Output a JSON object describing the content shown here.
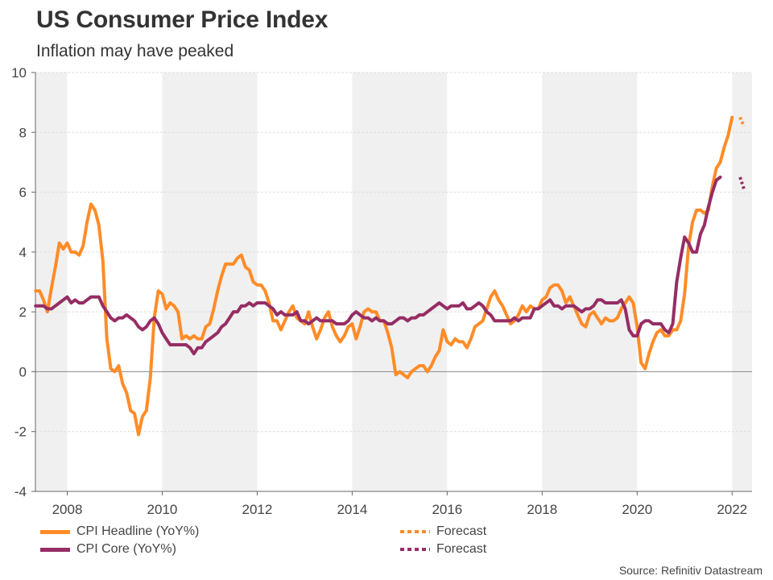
{
  "header": {
    "title": "US Consumer Price Index",
    "subtitle": "Inflation may have peaked"
  },
  "legend": [
    {
      "label": "CPI Headline (YoY%)",
      "color": "#FF8C28",
      "style": "solid"
    },
    {
      "label": "CPI Core (YoY%)",
      "color": "#962D64",
      "style": "solid"
    },
    {
      "label": "Forecast",
      "color": "#FF8C28",
      "style": "dotted"
    },
    {
      "label": "Forecast",
      "color": "#962D64",
      "style": "dotted"
    }
  ],
  "source": "Source: Refinitiv Datastream",
  "chart_data": {
    "type": "line",
    "title": "US Consumer Price Index",
    "subtitle": "Inflation may have peaked",
    "xlabel": "",
    "ylabel": "",
    "ylim": [
      -4,
      10
    ],
    "xlim": [
      2007.33,
      2022.42
    ],
    "yticks": [
      -4,
      -2,
      0,
      2,
      4,
      6,
      8,
      10
    ],
    "xticks": [
      "2008",
      "2010",
      "2012",
      "2014",
      "2016",
      "2018",
      "2020",
      "2022"
    ],
    "grid": true,
    "shaded_bands_years": [
      [
        2007.33,
        2008
      ],
      [
        2010,
        2012
      ],
      [
        2014,
        2016
      ],
      [
        2018,
        2020
      ],
      [
        2022,
        2022.42
      ]
    ],
    "x_start": "2007-05",
    "frequency": "monthly",
    "series": [
      {
        "name": "CPI Headline (YoY%)",
        "color": "#FF8C28",
        "values": [
          2.7,
          2.7,
          2.4,
          2.0,
          2.8,
          3.5,
          4.3,
          4.1,
          4.3,
          4.0,
          4.0,
          3.9,
          4.2,
          5.0,
          5.6,
          5.4,
          4.9,
          3.7,
          1.1,
          0.1,
          0.0,
          0.2,
          -0.4,
          -0.7,
          -1.3,
          -1.4,
          -2.1,
          -1.5,
          -1.3,
          -0.2,
          1.8,
          2.7,
          2.6,
          2.1,
          2.3,
          2.2,
          2.0,
          1.1,
          1.2,
          1.1,
          1.2,
          1.1,
          1.1,
          1.5,
          1.6,
          2.1,
          2.7,
          3.2,
          3.6,
          3.6,
          3.6,
          3.8,
          3.9,
          3.5,
          3.4,
          3.0,
          2.9,
          2.9,
          2.7,
          2.3,
          1.7,
          1.7,
          1.4,
          1.7,
          2.0,
          2.2,
          1.8,
          1.7,
          1.6,
          2.0,
          1.5,
          1.1,
          1.4,
          1.8,
          2.0,
          1.5,
          1.2,
          1.0,
          1.2,
          1.5,
          1.6,
          1.1,
          1.5,
          2.0,
          2.1,
          2.0,
          2.0,
          1.7,
          1.7,
          1.3,
          0.8,
          -0.1,
          0.0,
          -0.1,
          -0.2,
          0.0,
          0.1,
          0.2,
          0.2,
          0.0,
          0.2,
          0.5,
          0.7,
          1.4,
          1.0,
          0.9,
          1.1,
          1.0,
          1.0,
          0.8,
          1.1,
          1.5,
          1.6,
          1.7,
          2.1,
          2.5,
          2.7,
          2.4,
          2.2,
          1.9,
          1.6,
          1.7,
          1.9,
          2.2,
          2.0,
          2.2,
          2.1,
          2.1,
          2.4,
          2.5,
          2.8,
          2.9,
          2.9,
          2.7,
          2.3,
          2.5,
          2.2,
          1.9,
          1.6,
          1.5,
          1.9,
          2.0,
          1.8,
          1.6,
          1.8,
          1.7,
          1.7,
          1.8,
          2.1,
          2.3,
          2.5,
          2.3,
          1.5,
          0.3,
          0.1,
          0.6,
          1.0,
          1.3,
          1.4,
          1.2,
          1.2,
          1.4,
          1.4,
          1.7,
          2.6,
          4.2,
          5.0,
          5.4,
          5.4,
          5.3,
          5.4,
          6.2,
          6.8,
          7.0,
          7.5,
          7.9,
          8.5
        ],
        "forecast": {
          "x": "2022-04",
          "values_from": "2022-03",
          "values": [
            8.5,
            8.2
          ]
        }
      },
      {
        "name": "CPI Core (YoY%)",
        "color": "#962D64",
        "values": [
          2.2,
          2.2,
          2.2,
          2.1,
          2.1,
          2.2,
          2.3,
          2.4,
          2.5,
          2.3,
          2.4,
          2.3,
          2.3,
          2.4,
          2.5,
          2.5,
          2.5,
          2.2,
          2.0,
          1.8,
          1.7,
          1.8,
          1.8,
          1.9,
          1.8,
          1.7,
          1.5,
          1.4,
          1.5,
          1.7,
          1.8,
          1.6,
          1.3,
          1.1,
          0.9,
          0.9,
          0.9,
          0.9,
          0.9,
          0.8,
          0.6,
          0.8,
          0.8,
          1.0,
          1.1,
          1.2,
          1.3,
          1.5,
          1.6,
          1.8,
          2.0,
          2.0,
          2.2,
          2.2,
          2.3,
          2.2,
          2.3,
          2.3,
          2.3,
          2.2,
          2.1,
          1.9,
          2.0,
          1.9,
          1.9,
          1.9,
          2.0,
          1.7,
          1.7,
          1.6,
          1.7,
          1.8,
          1.7,
          1.7,
          1.7,
          1.7,
          1.6,
          1.6,
          1.6,
          1.7,
          1.9,
          2.0,
          1.9,
          1.8,
          1.8,
          1.7,
          1.8,
          1.7,
          1.7,
          1.6,
          1.6,
          1.7,
          1.8,
          1.8,
          1.7,
          1.8,
          1.8,
          1.9,
          1.9,
          2.0,
          2.1,
          2.2,
          2.3,
          2.2,
          2.1,
          2.2,
          2.2,
          2.2,
          2.3,
          2.1,
          2.1,
          2.2,
          2.3,
          2.2,
          2.0,
          1.9,
          1.7,
          1.7,
          1.7,
          1.7,
          1.7,
          1.8,
          1.7,
          1.8,
          1.8,
          1.8,
          2.1,
          2.1,
          2.2,
          2.3,
          2.4,
          2.2,
          2.2,
          2.1,
          2.2,
          2.2,
          2.2,
          2.1,
          2.0,
          2.1,
          2.1,
          2.2,
          2.4,
          2.4,
          2.3,
          2.3,
          2.3,
          2.3,
          2.4,
          2.1,
          1.4,
          1.2,
          1.2,
          1.6,
          1.7,
          1.7,
          1.6,
          1.6,
          1.6,
          1.4,
          1.3,
          1.6,
          3.0,
          3.8,
          4.5,
          4.3,
          4.0,
          4.0,
          4.6,
          4.9,
          5.5,
          6.0,
          6.4,
          6.5
        ],
        "forecast": {
          "x": "2022-04",
          "values_from": "2022-03",
          "values": [
            6.5,
            6.1
          ]
        }
      }
    ]
  }
}
